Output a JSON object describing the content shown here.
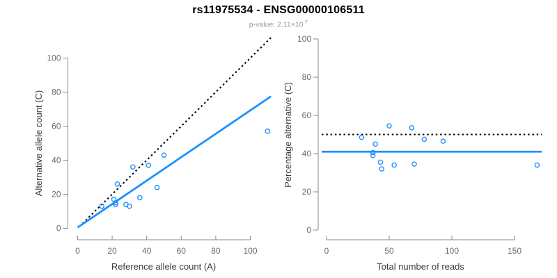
{
  "header": {
    "title": "rs11975534 - ENSG00000106511",
    "subtitle_prefix": "p-value: 2.11×10",
    "subtitle_exponent": "-7"
  },
  "colors": {
    "accent_blue": "#1E90FF",
    "dotted_line": "#000000",
    "axis": "#8A8A8A",
    "tick_label": "#6B6B6B",
    "axis_title": "#3D3D3D",
    "subtitle": "#9A9A9A",
    "title": "#000000"
  },
  "chart_data": [
    {
      "type": "scatter",
      "name": "allele-counts",
      "xlabel": "Reference allele count (A)",
      "ylabel": "Alternative allele count (C)",
      "xlim": [
        0,
        113
      ],
      "ylim": [
        0,
        113
      ],
      "xticks": [
        0,
        20,
        40,
        60,
        80,
        100
      ],
      "yticks": [
        0,
        20,
        40,
        60,
        80,
        100
      ],
      "grid": false,
      "legend": "none",
      "lines": [
        {
          "role": "identity-line",
          "style": "dotted",
          "color": "#000000",
          "x1": 1,
          "y1": 1,
          "x2": 112,
          "y2": 112
        },
        {
          "role": "fit-line",
          "style": "solid",
          "color": "#1E90FF",
          "x1": 0,
          "y1": 0.5,
          "x2": 112,
          "y2": 77.5
        }
      ],
      "points": [
        [
          14,
          13
        ],
        [
          21,
          17
        ],
        [
          22,
          15
        ],
        [
          22,
          14
        ],
        [
          23,
          26
        ],
        [
          28,
          14
        ],
        [
          30,
          13
        ],
        [
          32,
          36
        ],
        [
          36,
          18
        ],
        [
          41,
          37
        ],
        [
          46,
          24
        ],
        [
          50,
          43
        ],
        [
          110,
          57
        ]
      ]
    },
    {
      "type": "scatter",
      "name": "percentage-vs-reads",
      "xlabel": "Total number of reads",
      "ylabel": "Percentage alternative (C)",
      "xlim": [
        0,
        172
      ],
      "ylim": [
        0,
        100
      ],
      "xticks": [
        0,
        50,
        100,
        150
      ],
      "yticks": [
        0,
        20,
        40,
        60,
        80,
        100
      ],
      "grid": false,
      "legend": "none",
      "lines": [
        {
          "role": "expected-50pct-line",
          "style": "dotted",
          "color": "#000000",
          "y": 50
        },
        {
          "role": "observed-ratio-line",
          "style": "solid",
          "color": "#1E90FF",
          "y": 41
        }
      ],
      "points": [
        [
          28,
          48.5
        ],
        [
          37,
          40.5
        ],
        [
          37,
          39
        ],
        [
          39,
          45
        ],
        [
          43,
          35.5
        ],
        [
          44,
          32
        ],
        [
          50,
          54.5
        ],
        [
          54,
          34
        ],
        [
          68,
          53.5
        ],
        [
          70,
          34.5
        ],
        [
          78,
          47.5
        ],
        [
          93,
          46.5
        ],
        [
          168,
          34
        ]
      ]
    }
  ]
}
